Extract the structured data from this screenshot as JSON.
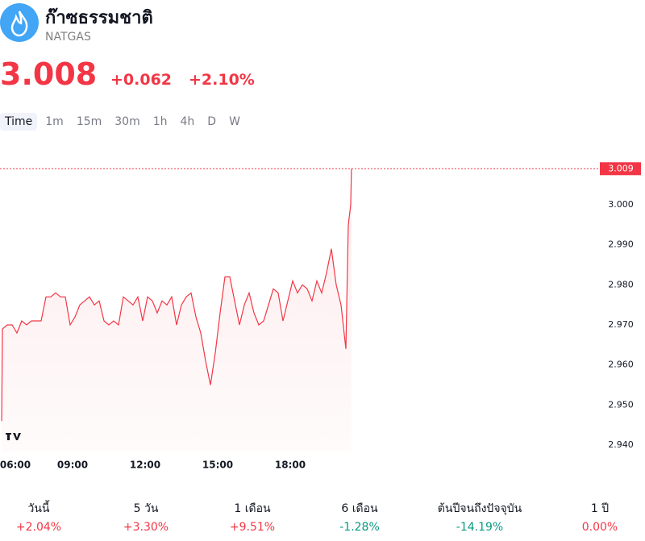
{
  "header": {
    "title": "ก๊าซธรรมชาติ",
    "symbol": "NATGAS",
    "price": 3.008,
    "change": "+0.062",
    "change_percent": "+2.10%"
  },
  "intervals": [
    "Time",
    "1m",
    "15m",
    "30m",
    "1h",
    "4h",
    "D",
    "W"
  ],
  "chart_data": {
    "type": "line",
    "color": "#f23645",
    "last_value": 3.009,
    "x": [
      6.07,
      6.1,
      6.3,
      6.5,
      6.7,
      6.9,
      7.1,
      7.3,
      7.5,
      7.7,
      7.9,
      8.1,
      8.3,
      8.5,
      8.7,
      8.9,
      9.1,
      9.3,
      9.5,
      9.7,
      9.9,
      10.1,
      10.3,
      10.5,
      10.7,
      10.9,
      11.1,
      11.3,
      11.5,
      11.7,
      11.9,
      12.1,
      12.3,
      12.5,
      12.7,
      12.9,
      13.1,
      13.3,
      13.5,
      13.7,
      13.9,
      14.1,
      14.3,
      14.5,
      14.7,
      14.9,
      15.1,
      15.3,
      15.5,
      15.7,
      15.9,
      16.1,
      16.3,
      16.5,
      16.7,
      16.9,
      17.1,
      17.3,
      17.5,
      17.7,
      17.9,
      18.1,
      18.3,
      18.5,
      18.7,
      18.9,
      19.1,
      19.3,
      19.5,
      19.7,
      19.9,
      20.1,
      20.3,
      20.4,
      20.5,
      20.53
    ],
    "values": [
      2.946,
      2.969,
      2.97,
      2.97,
      2.968,
      2.971,
      2.97,
      2.971,
      2.971,
      2.971,
      2.977,
      2.977,
      2.978,
      2.977,
      2.977,
      2.97,
      2.972,
      2.975,
      2.976,
      2.977,
      2.975,
      2.976,
      2.971,
      2.97,
      2.971,
      2.97,
      2.977,
      2.976,
      2.975,
      2.977,
      2.971,
      2.977,
      2.976,
      2.973,
      2.976,
      2.975,
      2.977,
      2.97,
      2.975,
      2.977,
      2.978,
      2.972,
      2.968,
      2.961,
      2.955,
      2.963,
      2.973,
      2.982,
      2.982,
      2.976,
      2.97,
      2.975,
      2.978,
      2.973,
      2.97,
      2.971,
      2.975,
      2.979,
      2.978,
      2.971,
      2.976,
      2.981,
      2.978,
      2.98,
      2.979,
      2.976,
      2.981,
      2.978,
      2.983,
      2.989,
      2.98,
      2.975,
      2.964,
      2.995,
      3.0,
      3.009
    ],
    "xlim": [
      6,
      30.5
    ],
    "ylim": [
      2.9385,
      3.016
    ],
    "xticks": [
      {
        "value": 6,
        "label": "06:00"
      },
      {
        "value": 9,
        "label": "09:00"
      },
      {
        "value": 12,
        "label": "12:00"
      },
      {
        "value": 15,
        "label": "15:00"
      },
      {
        "value": 18,
        "label": "18:00"
      }
    ],
    "yticks": [
      {
        "value": 2.94,
        "label": "2.940"
      },
      {
        "value": 2.95,
        "label": "2.950"
      },
      {
        "value": 2.96,
        "label": "2.960"
      },
      {
        "value": 2.97,
        "label": "2.970"
      },
      {
        "value": 2.98,
        "label": "2.980"
      },
      {
        "value": 2.99,
        "label": "2.990"
      },
      {
        "value": 3.0,
        "label": "3.000"
      }
    ]
  },
  "performance": [
    {
      "label": "วันนี้",
      "value": "+2.04%"
    },
    {
      "label": "5 วัน",
      "value": "+3.30%"
    },
    {
      "label": "1 เดือน",
      "value": "+9.51%"
    },
    {
      "label": "6 เดือน",
      "value": "-1.28%"
    },
    {
      "label": "ต้นปีจนถึงปัจจุบัน",
      "value": "-14.19%"
    },
    {
      "label": "1 ปี",
      "value": "0.00%"
    }
  ]
}
